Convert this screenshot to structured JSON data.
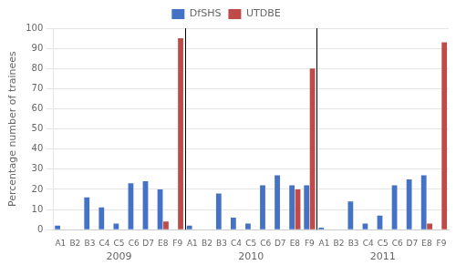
{
  "chart_data": {
    "type": "bar",
    "categories": [
      "A1",
      "B2",
      "B3",
      "C4",
      "C5",
      "C6",
      "D7",
      "E8",
      "F9",
      "A1",
      "B2",
      "B3",
      "C4",
      "C5",
      "C6",
      "D7",
      "E8",
      "F9",
      "A1",
      "B2",
      "B3",
      "C4",
      "C5",
      "C6",
      "D7",
      "E8",
      "F9"
    ],
    "groups": [
      "2009",
      "2010",
      "2011"
    ],
    "series": [
      {
        "name": "DfSHS",
        "color": "#4472C4",
        "values": [
          2,
          0,
          16,
          11,
          3,
          23,
          24,
          20,
          0,
          2,
          0,
          18,
          6,
          3,
          22,
          27,
          22,
          22,
          1,
          0,
          14,
          3,
          7,
          22,
          25,
          27,
          0
        ]
      },
      {
        "name": "UTDBE",
        "color": "#BE4B48",
        "values": [
          0,
          0,
          0,
          0,
          0,
          0,
          0,
          4,
          95,
          0,
          0,
          0,
          0,
          0,
          0,
          0,
          20,
          80,
          0,
          0,
          0,
          0,
          0,
          0,
          0,
          3,
          93
        ]
      }
    ],
    "y_label": "Percentage number of trainees",
    "ylim": [
      0,
      100
    ],
    "yticks": [
      0,
      10,
      20,
      30,
      40,
      50,
      60,
      70,
      80,
      90,
      100
    ],
    "grid": true,
    "legend": "top"
  }
}
